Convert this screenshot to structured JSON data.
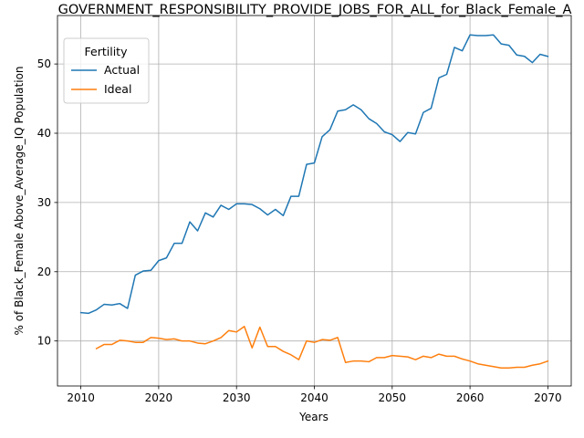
{
  "chart_data": {
    "type": "line",
    "title": "GOVERNMENT_RESPONSIBILITY_PROVIDE_JOBS_FOR_ALL_for_Black_Female_A",
    "xlabel": "Years",
    "ylabel": "% of Black_Female Above_Average_IQ Population",
    "xlim": [
      2007,
      2073
    ],
    "ylim": [
      3.5,
      57
    ],
    "xticks": [
      2010,
      2020,
      2030,
      2040,
      2050,
      2060,
      2070
    ],
    "yticks": [
      10,
      20,
      30,
      40,
      50
    ],
    "grid": true,
    "legend": {
      "title": "Fertility",
      "placement": "top-left"
    },
    "series": [
      {
        "name": "Actual",
        "color": "#1f77b4",
        "x": [
          2010,
          2011,
          2012,
          2013,
          2014,
          2015,
          2016,
          2017,
          2018,
          2019,
          2020,
          2021,
          2022,
          2023,
          2024,
          2025,
          2026,
          2027,
          2028,
          2029,
          2030,
          2031,
          2032,
          2033,
          2034,
          2035,
          2036,
          2037,
          2038,
          2039,
          2040,
          2041,
          2042,
          2043,
          2044,
          2045,
          2046,
          2047,
          2048,
          2049,
          2050,
          2051,
          2052,
          2053,
          2054,
          2055,
          2056,
          2057,
          2058,
          2059,
          2060,
          2061,
          2062,
          2063,
          2064,
          2065,
          2066,
          2067,
          2068,
          2069,
          2070
        ],
        "values": [
          14.1,
          14.0,
          14.5,
          15.3,
          15.2,
          15.4,
          14.7,
          19.5,
          20.1,
          20.2,
          21.6,
          22.0,
          24.1,
          24.1,
          27.2,
          25.9,
          28.5,
          27.9,
          29.6,
          29.0,
          29.8,
          29.8,
          29.7,
          29.1,
          28.2,
          29.0,
          28.1,
          30.9,
          30.9,
          35.5,
          35.7,
          39.5,
          40.5,
          43.2,
          43.4,
          44.1,
          43.4,
          42.1,
          41.4,
          40.2,
          39.8,
          38.8,
          40.1,
          39.9,
          43.0,
          43.6,
          48.0,
          48.5,
          52.4,
          51.9,
          54.2,
          54.1,
          54.1,
          54.2,
          52.9,
          52.7,
          51.3,
          51.1,
          50.2,
          51.4,
          51.1
        ]
      },
      {
        "name": "Ideal",
        "color": "#ff7f0e",
        "x": [
          2012,
          2013,
          2014,
          2015,
          2016,
          2017,
          2018,
          2019,
          2020,
          2021,
          2022,
          2023,
          2024,
          2025,
          2026,
          2027,
          2028,
          2029,
          2030,
          2031,
          2032,
          2033,
          2034,
          2035,
          2036,
          2037,
          2038,
          2039,
          2040,
          2041,
          2042,
          2043,
          2044,
          2045,
          2046,
          2047,
          2048,
          2049,
          2050,
          2051,
          2052,
          2053,
          2054,
          2055,
          2056,
          2057,
          2058,
          2059,
          2060,
          2061,
          2062,
          2063,
          2064,
          2065,
          2066,
          2067,
          2068,
          2069,
          2070
        ],
        "values": [
          8.9,
          9.5,
          9.5,
          10.1,
          10.0,
          9.8,
          9.8,
          10.5,
          10.4,
          10.2,
          10.3,
          10.0,
          10.0,
          9.7,
          9.6,
          10.0,
          10.5,
          11.5,
          11.3,
          12.1,
          9.0,
          12.0,
          9.2,
          9.2,
          8.5,
          8.0,
          7.3,
          10.0,
          9.8,
          10.2,
          10.1,
          10.5,
          6.9,
          7.1,
          7.1,
          7.0,
          7.6,
          7.6,
          7.9,
          7.8,
          7.7,
          7.3,
          7.8,
          7.6,
          8.1,
          7.8,
          7.8,
          7.4,
          7.1,
          6.7,
          6.5,
          6.3,
          6.1,
          6.1,
          6.2,
          6.2,
          6.5,
          6.7,
          7.1
        ]
      }
    ]
  }
}
